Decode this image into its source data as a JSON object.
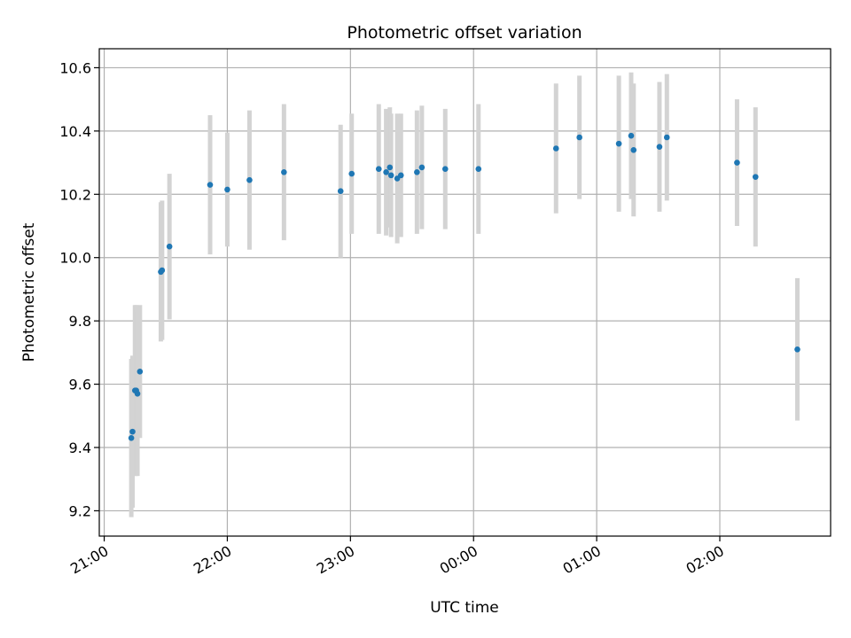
{
  "chart_data": {
    "type": "scatter",
    "title": "Photometric offset variation",
    "xlabel": "UTC time",
    "ylabel": "Photometric offset",
    "x_unit": "hours after 21:00 UTC",
    "xlim": [
      -0.04,
      5.9
    ],
    "ylim": [
      9.12,
      10.66
    ],
    "x_ticks": [
      {
        "value": 0,
        "label": "21:00"
      },
      {
        "value": 1,
        "label": "22:00"
      },
      {
        "value": 2,
        "label": "23:00"
      },
      {
        "value": 3,
        "label": "00:00"
      },
      {
        "value": 4,
        "label": "01:00"
      },
      {
        "value": 5,
        "label": "02:00"
      }
    ],
    "y_ticks": [
      {
        "value": 9.2,
        "label": "9.2"
      },
      {
        "value": 9.4,
        "label": "9.4"
      },
      {
        "value": 9.6,
        "label": "9.6"
      },
      {
        "value": 9.8,
        "label": "9.8"
      },
      {
        "value": 10.0,
        "label": "10.0"
      },
      {
        "value": 10.2,
        "label": "10.2"
      },
      {
        "value": 10.4,
        "label": "10.4"
      },
      {
        "value": 10.6,
        "label": "10.6"
      }
    ],
    "grid": true,
    "point_color": "#1f77b4",
    "errorbar_color": "#d3d3d3",
    "points": [
      {
        "x": 0.22,
        "y": 9.43,
        "err": 0.25
      },
      {
        "x": 0.23,
        "y": 9.45,
        "err": 0.24
      },
      {
        "x": 0.25,
        "y": 9.58,
        "err": 0.27
      },
      {
        "x": 0.26,
        "y": 9.58,
        "err": 0.27
      },
      {
        "x": 0.27,
        "y": 9.57,
        "err": 0.26
      },
      {
        "x": 0.29,
        "y": 9.64,
        "err": 0.21
      },
      {
        "x": 0.46,
        "y": 9.955,
        "err": 0.22
      },
      {
        "x": 0.47,
        "y": 9.96,
        "err": 0.22
      },
      {
        "x": 0.53,
        "y": 10.035,
        "err": 0.23
      },
      {
        "x": 0.86,
        "y": 10.23,
        "err": 0.22
      },
      {
        "x": 1.0,
        "y": 10.215,
        "err": 0.18
      },
      {
        "x": 1.18,
        "y": 10.245,
        "err": 0.22
      },
      {
        "x": 1.46,
        "y": 10.27,
        "err": 0.215
      },
      {
        "x": 1.92,
        "y": 10.21,
        "err": 0.21
      },
      {
        "x": 2.01,
        "y": 10.265,
        "err": 0.19
      },
      {
        "x": 2.23,
        "y": 10.28,
        "err": 0.205
      },
      {
        "x": 2.29,
        "y": 10.27,
        "err": 0.2
      },
      {
        "x": 2.32,
        "y": 10.285,
        "err": 0.19
      },
      {
        "x": 2.33,
        "y": 10.26,
        "err": 0.195
      },
      {
        "x": 2.38,
        "y": 10.25,
        "err": 0.205
      },
      {
        "x": 2.41,
        "y": 10.26,
        "err": 0.195
      },
      {
        "x": 2.54,
        "y": 10.27,
        "err": 0.195
      },
      {
        "x": 2.58,
        "y": 10.285,
        "err": 0.195
      },
      {
        "x": 2.77,
        "y": 10.28,
        "err": 0.19
      },
      {
        "x": 3.04,
        "y": 10.28,
        "err": 0.205
      },
      {
        "x": 3.67,
        "y": 10.345,
        "err": 0.205
      },
      {
        "x": 3.86,
        "y": 10.38,
        "err": 0.195
      },
      {
        "x": 4.18,
        "y": 10.36,
        "err": 0.215
      },
      {
        "x": 4.28,
        "y": 10.385,
        "err": 0.2
      },
      {
        "x": 4.3,
        "y": 10.34,
        "err": 0.21
      },
      {
        "x": 4.51,
        "y": 10.35,
        "err": 0.205
      },
      {
        "x": 4.57,
        "y": 10.38,
        "err": 0.2
      },
      {
        "x": 5.14,
        "y": 10.3,
        "err": 0.2
      },
      {
        "x": 5.29,
        "y": 10.255,
        "err": 0.22
      },
      {
        "x": 5.63,
        "y": 9.71,
        "err": 0.225
      }
    ]
  }
}
